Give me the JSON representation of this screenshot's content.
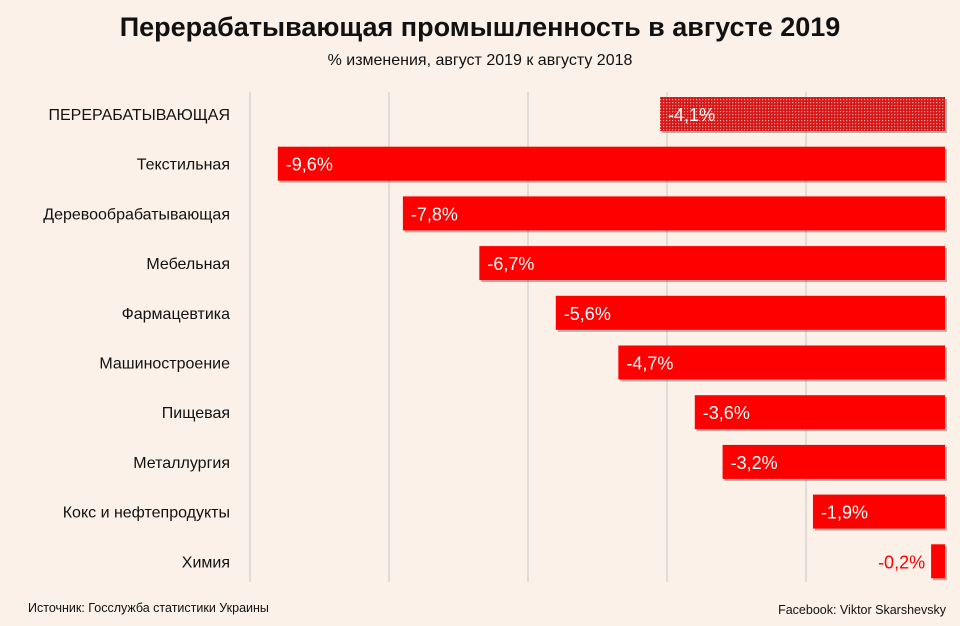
{
  "chart_data": {
    "type": "bar",
    "orientation": "horizontal",
    "title": "Перерабатывающая промышленность в августе 2019",
    "subtitle": "% изменения, август 2019 к августу 2018",
    "categories": [
      "ПЕРЕРАБАТЫВАЮЩАЯ",
      "Текстильная",
      "Деревообрабатывающая",
      "Мебельная",
      "Фармацевтика",
      "Машиностроение",
      "Пищевая",
      "Металлургия",
      "Кокс и нефтепродукты",
      "Химия"
    ],
    "values": [
      -4.1,
      -9.6,
      -7.8,
      -6.7,
      -5.6,
      -4.7,
      -3.6,
      -3.2,
      -1.9,
      -0.2
    ],
    "value_labels": [
      "-4,1%",
      "-9,6%",
      "-7,8%",
      "-6,7%",
      "-5,6%",
      "-4,7%",
      "-3,6%",
      "-3,2%",
      "-1,9%",
      "-0,2%"
    ],
    "highlight_index": 0,
    "xlim": [
      -10,
      0
    ],
    "grid": true,
    "colors": {
      "bar": "#ff0000",
      "highlight_bar": "#e11a1a",
      "label_inside": "#ffffff",
      "label_outside": "#ff0000",
      "grid": "#c8c8c8"
    }
  },
  "footer": {
    "source": "Источник: Госслужба статистики Украины",
    "credit": "Facebook: Viktor Skarshevsky"
  }
}
